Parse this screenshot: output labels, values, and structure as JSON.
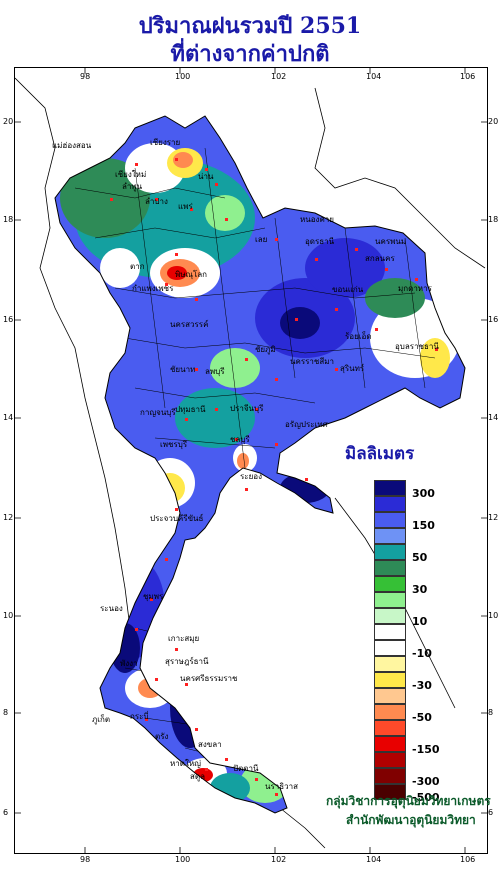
{
  "title_line1": "ปริมาณฝนรวมปี  2551",
  "title_line2": "ที่ต่างจากค่าปกติ",
  "legend": {
    "title": "มิลลิเมตร",
    "levels": [
      {
        "color": "#0a0a7a",
        "label": "300"
      },
      {
        "color": "#2b2bd6",
        "label": ""
      },
      {
        "color": "#4a5cf0",
        "label": "150"
      },
      {
        "color": "#6e92f5",
        "label": ""
      },
      {
        "color": "#14a0a0",
        "label": "50"
      },
      {
        "color": "#2e8b57",
        "label": ""
      },
      {
        "color": "#36c036",
        "label": "30"
      },
      {
        "color": "#8ff08f",
        "label": ""
      },
      {
        "color": "#c8f7c8",
        "label": "10"
      },
      {
        "color": "#ffffff",
        "label": ""
      },
      {
        "color": "#ffffff",
        "label": "-10"
      },
      {
        "color": "#fff6a0",
        "label": ""
      },
      {
        "color": "#ffe84a",
        "label": "-30"
      },
      {
        "color": "#ffc890",
        "label": ""
      },
      {
        "color": "#ff8a50",
        "label": "-50"
      },
      {
        "color": "#ff4a2a",
        "label": ""
      },
      {
        "color": "#e80000",
        "label": "-150"
      },
      {
        "color": "#b00000",
        "label": ""
      },
      {
        "color": "#800000",
        "label": "-300"
      },
      {
        "color": "#4a0000",
        "label": "-500"
      }
    ]
  },
  "longitude_ticks": [
    "98",
    "100",
    "102",
    "104",
    "106"
  ],
  "latitude_ticks": [
    "20",
    "18",
    "16",
    "14",
    "12",
    "10",
    "8",
    "6"
  ],
  "credit_line1": "กลุ่มวิชาการอุตุนิยมวิทยาเกษตร",
  "credit_line2": "สำนักพัฒนาอุตุนิยมวิทยา",
  "places": [
    "เชียงราย",
    "แม่ฮ่องสอน",
    "เชียงใหม่",
    "ลำพูน",
    "น่าน",
    "ลำปาง",
    "แพร่",
    "หนองคาย",
    "อุดรธานี",
    "นครพนม",
    "สกลนคร",
    "มุกดาหาร",
    "เลย",
    "ตาก",
    "พิษณุโลก",
    "ขอนแก่น",
    "กำแพงเพชร",
    "นครสวรรค์",
    "ชัยภูมิ",
    "ร้อยเอ็ด",
    "อุบลราชธานี",
    "นครราชสีมา",
    "สุรินทร์",
    "ลพบุรี",
    "ชัยนาท",
    "กาญจนบุรี",
    "ปทุมธานี",
    "ปราจีนบุรี",
    "อรัญประเทศ",
    "ชลบุรี",
    "เพชรบุรี",
    "ระยอง",
    "ประจวบคีรีขันธ์",
    "ชุมพร",
    "ระนอง",
    "เกาะสมุย",
    "สุราษฎร์ธานี",
    "พังงา",
    "นครศรีธรรมราช",
    "ภูเก็ต",
    "กระบี่",
    "ตรัง",
    "สงขลา",
    "หาดใหญ่",
    "ปัตตานี",
    "นราธิวาส",
    "สตูล"
  ]
}
